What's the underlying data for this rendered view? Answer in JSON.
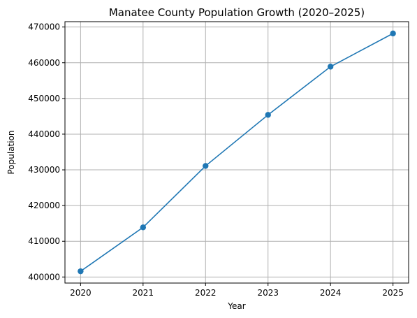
{
  "chart_data": {
    "type": "line",
    "title": "Manatee County Population Growth (2020–2025)",
    "xlabel": "Year",
    "ylabel": "Population",
    "x": [
      2020,
      2021,
      2022,
      2023,
      2024,
      2025
    ],
    "series": [
      {
        "values": [
          401600,
          413900,
          431100,
          445400,
          458900,
          468200
        ],
        "color": "#1f77b4",
        "marker": "circle"
      }
    ],
    "xlim": [
      2019.75,
      2025.25
    ],
    "ylim": [
      398300,
      471500
    ],
    "x_ticks": [
      "2020",
      "2021",
      "2022",
      "2023",
      "2024",
      "2025"
    ],
    "y_ticks": [
      400000,
      410000,
      420000,
      430000,
      440000,
      450000,
      460000,
      470000
    ],
    "y_tick_labels": [
      "400000",
      "410000",
      "420000",
      "430000",
      "440000",
      "450000",
      "460000",
      "470000"
    ],
    "grid": true,
    "legend": false
  }
}
